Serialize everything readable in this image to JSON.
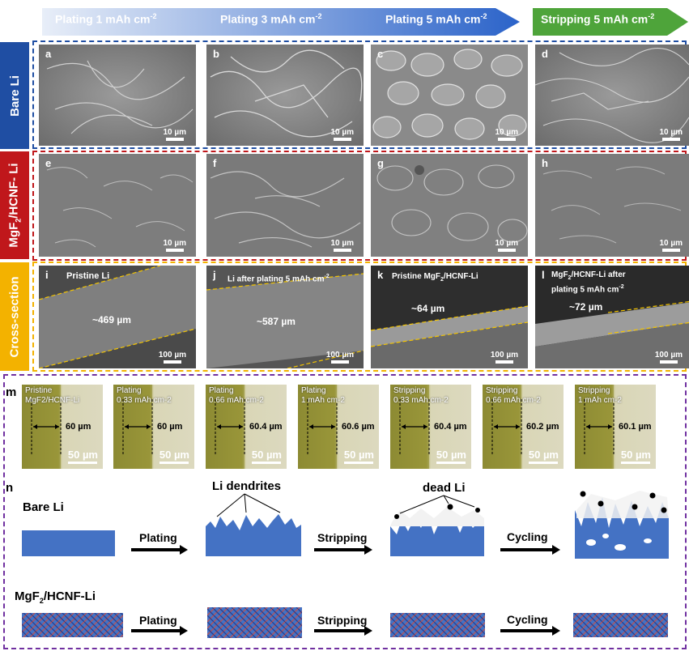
{
  "header": {
    "steps": [
      "Plating 1 mAh cm",
      "Plating 3 mAh cm",
      "Plating 5 mAh cm"
    ],
    "stripping": "Stripping 5 mAh cm",
    "exponent": "-2"
  },
  "rows": {
    "bare": "Bare Li",
    "mgf2_prefix": "MgF",
    "mgf2_sub": "2",
    "mgf2_suffix": "/HCNF- Li",
    "cross": "Cross-section"
  },
  "panels": {
    "a": "a",
    "b": "b",
    "c": "c",
    "d": "d",
    "e": "e",
    "f": "f",
    "g": "g",
    "h": "h",
    "i": "i",
    "j": "j",
    "k": "k",
    "l": "l",
    "m": "m",
    "n": "n"
  },
  "scale": {
    "ten": "10 µm",
    "hundred": "100 µm",
    "fifty": "50 µm"
  },
  "cross": {
    "i_caption": "Pristine Li",
    "i_thick": "~469 µm",
    "j_caption": "Li after plating 5 mAh cm",
    "j_thick": "~587 µm",
    "k_caption_a": "Pristine MgF",
    "k_caption_sub": "2",
    "k_caption_b": "/HCNF-Li",
    "k_thick": "~64 µm",
    "l_caption_a": "MgF",
    "l_caption_sub": "2",
    "l_caption_b": "/HCNF-Li after",
    "l_caption_c": "plating 5 mAh cm",
    "l_thick": "~72 µm",
    "exp": "-2"
  },
  "optical": [
    {
      "l1": "Pristine",
      "l2": "MgF2/HCNF-Li",
      "val": "60 µm"
    },
    {
      "l1": "Plating",
      "l2": "0.33 mAh cm-2",
      "val": "60 µm"
    },
    {
      "l1": "Plating",
      "l2": "0.66 mAh cm-2",
      "val": "60.4 µm"
    },
    {
      "l1": "Plating",
      "l2": "1 mAh cm-2",
      "val": "60.6 µm"
    },
    {
      "l1": "Stripping",
      "l2": "0.33 mAh cm-2",
      "val": "60.4 µm"
    },
    {
      "l1": "Stripping",
      "l2": "0.66 mAh cm-2",
      "val": "60.2 µm"
    },
    {
      "l1": "Stripping",
      "l2": "1 mAh cm-2",
      "val": "60.1 µm"
    }
  ],
  "schematic": {
    "bare_title": "Bare Li",
    "mgf2_a": "MgF",
    "mgf2_sub": "2",
    "mgf2_b": "/HCNF-Li",
    "dendrites": "Li dendrites",
    "dead": "dead Li",
    "plating": "Plating",
    "stripping": "Stripping",
    "cycling": "Cycling"
  },
  "colors": {
    "blue": "#1f4ea3",
    "red": "#c0171b",
    "gold": "#f3b200",
    "purple": "#7030a0",
    "green": "#4ea43a",
    "li": "#4472c4"
  }
}
